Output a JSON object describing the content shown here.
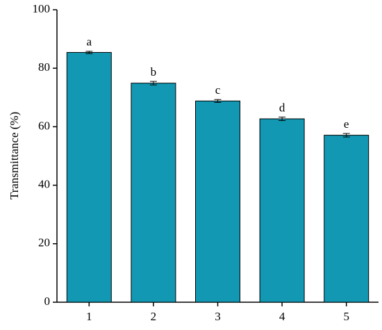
{
  "chart_data": {
    "type": "bar",
    "y_label": "Transmittance (%)",
    "categories": [
      "1",
      "2",
      "3",
      "4",
      "5"
    ],
    "values": [
      85.4,
      74.9,
      68.8,
      62.7,
      57.1
    ],
    "errors": [
      0.4,
      0.6,
      0.5,
      0.6,
      0.6
    ],
    "significance_letters": [
      "a",
      "b",
      "c",
      "d",
      "e"
    ],
    "color": "#1298b2",
    "ylim": [
      0,
      100
    ],
    "yticks": [
      0,
      20,
      40,
      60,
      80,
      100
    ],
    "grid": false
  }
}
